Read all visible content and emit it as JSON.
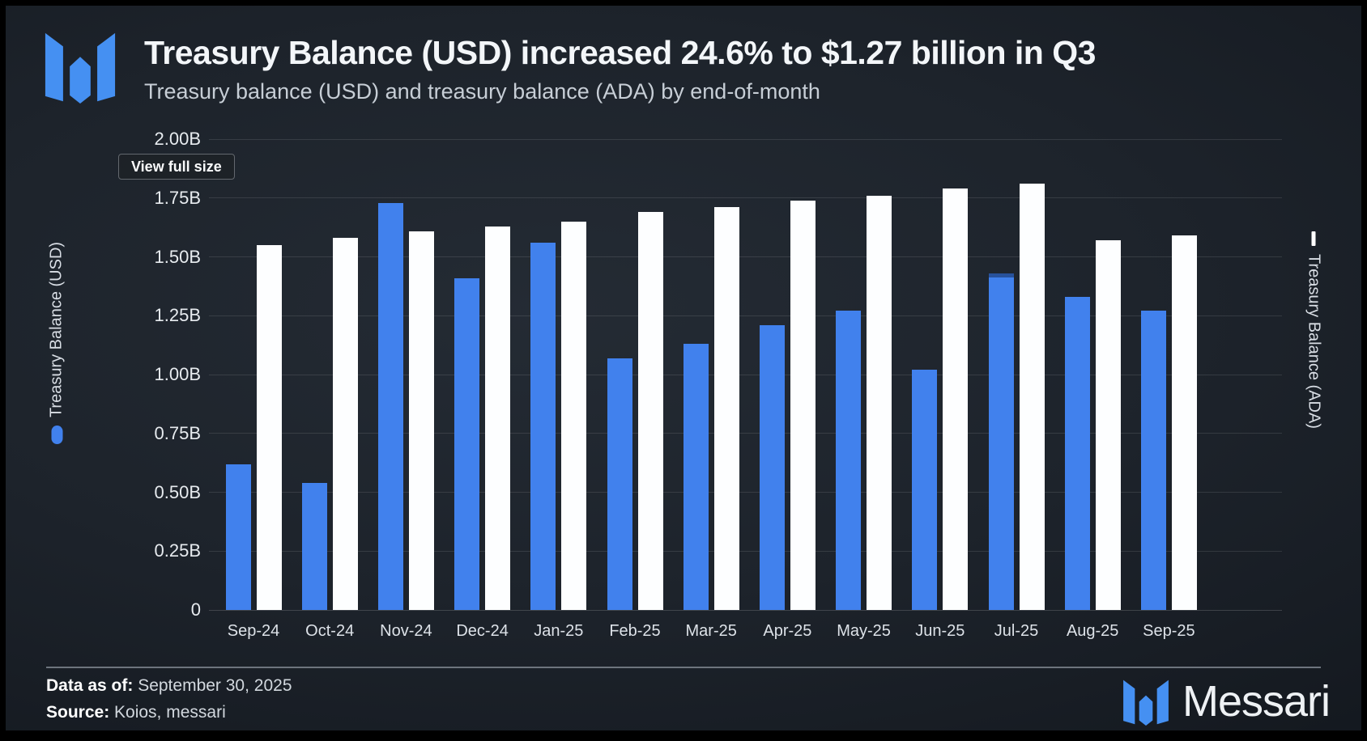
{
  "header": {
    "title": "Treasury Balance (USD) increased 24.6% to $1.27 billion in Q3",
    "subtitle": "Treasury balance (USD) and treasury balance (ADA) by end-of-month"
  },
  "view_full_size_label": "View full size",
  "colors": {
    "usd_bar": "#4181ed",
    "ada_bar": "#fdfeff",
    "logo_blue": "#4590f2",
    "background": "#1d232b"
  },
  "chart_data": {
    "type": "bar",
    "title": "Treasury Balance (USD) increased 24.6% to $1.27 billion in Q3",
    "subtitle": "Treasury balance (USD) and treasury balance (ADA) by end-of-month",
    "categories": [
      "Sep-24",
      "Oct-24",
      "Nov-24",
      "Dec-24",
      "Jan-25",
      "Feb-25",
      "Mar-25",
      "Apr-25",
      "May-25",
      "Jun-25",
      "Jul-25",
      "Aug-25",
      "Sep-25"
    ],
    "series": [
      {
        "name": "Treasury Balance (USD)",
        "unit": "billions USD",
        "axis": "left",
        "color_key": "usd_bar",
        "values": [
          0.62,
          0.54,
          1.73,
          1.41,
          1.56,
          1.07,
          1.13,
          1.21,
          1.27,
          1.02,
          1.43,
          1.33,
          1.27
        ],
        "top_shade_category": "Jul-25"
      },
      {
        "name": "Treasury Balance (ADA)",
        "unit": "billions ADA",
        "axis": "right",
        "color_key": "ada_bar",
        "values": [
          1.55,
          1.58,
          1.61,
          1.63,
          1.65,
          1.69,
          1.71,
          1.74,
          1.76,
          1.79,
          1.81,
          1.57,
          1.59
        ]
      }
    ],
    "ylabel_left": "Treasury Balance (USD)",
    "ylabel_right": "Treasury Balance (ADA)",
    "ylim": [
      0,
      2.0
    ],
    "grid": true,
    "y_axis": {
      "ticks": [
        {
          "value": 2.0,
          "label": "2.00B"
        },
        {
          "value": 1.75,
          "label": "1.75B"
        },
        {
          "value": 1.5,
          "label": "1.50B"
        },
        {
          "value": 1.25,
          "label": "1.25B"
        },
        {
          "value": 1.0,
          "label": "1.00B"
        },
        {
          "value": 0.75,
          "label": "0.75B"
        },
        {
          "value": 0.5,
          "label": "0.50B"
        },
        {
          "value": 0.25,
          "label": "0.25B"
        },
        {
          "value": 0.0,
          "label": "0"
        }
      ]
    },
    "legend_position": "axis-labels"
  },
  "footer": {
    "data_as_of_label": "Data as of:",
    "data_as_of_value": " September 30, 2025",
    "source_label": "Source:",
    "source_value": " Koios, messari",
    "brand": "Messari"
  }
}
